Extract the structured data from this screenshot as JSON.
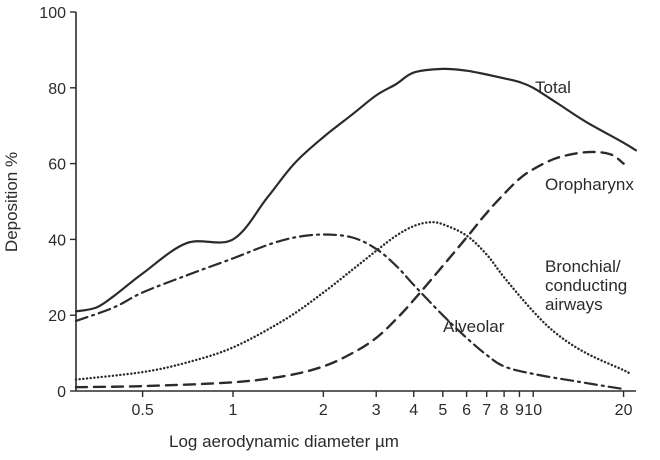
{
  "chart_data": {
    "type": "line",
    "title": "",
    "xlabel": "Log aerodynamic diameter µm",
    "ylabel": "Deposition %",
    "x_scale": "log",
    "xlim": [
      0.3,
      22
    ],
    "ylim": [
      0,
      100
    ],
    "grid": false,
    "x_ticks": [
      0.5,
      1,
      2,
      3,
      4,
      5,
      6,
      7,
      8,
      9,
      10,
      20
    ],
    "x_tick_labels": [
      "0.5",
      "1",
      "2",
      "3",
      "4",
      "5",
      "6",
      "7",
      "8",
      "9",
      "10",
      "20"
    ],
    "y_ticks": [
      0,
      20,
      40,
      60,
      80,
      100
    ],
    "y_tick_labels": [
      "0",
      "20",
      "40",
      "60",
      "80",
      "100"
    ],
    "series": [
      {
        "name": "Total",
        "style": "solid",
        "points": [
          [
            0.3,
            21
          ],
          [
            0.35,
            22
          ],
          [
            0.4,
            25
          ],
          [
            0.5,
            31
          ],
          [
            0.7,
            39
          ],
          [
            1,
            40
          ],
          [
            1.3,
            51
          ],
          [
            1.6,
            60
          ],
          [
            2,
            67
          ],
          [
            2.5,
            73
          ],
          [
            3,
            78
          ],
          [
            3.5,
            81
          ],
          [
            4,
            84
          ],
          [
            5,
            85
          ],
          [
            6,
            84.5
          ],
          [
            7,
            83.5
          ],
          [
            8,
            82.5
          ],
          [
            9,
            81.5
          ],
          [
            10,
            80
          ],
          [
            12,
            76
          ],
          [
            15,
            71
          ],
          [
            20,
            65.5
          ],
          [
            22,
            63.5
          ]
        ]
      },
      {
        "name": "Oropharynx",
        "style": "dashed",
        "points": [
          [
            0.3,
            1
          ],
          [
            0.5,
            1.3
          ],
          [
            1,
            2.3
          ],
          [
            1.5,
            4
          ],
          [
            2,
            6.5
          ],
          [
            2.5,
            10
          ],
          [
            3,
            14
          ],
          [
            3.5,
            19
          ],
          [
            4,
            24
          ],
          [
            5,
            33
          ],
          [
            6,
            40.5
          ],
          [
            7,
            47
          ],
          [
            8,
            52
          ],
          [
            9,
            56
          ],
          [
            10,
            58.5
          ],
          [
            12,
            61.5
          ],
          [
            15,
            63
          ],
          [
            18,
            62.5
          ],
          [
            20,
            60
          ]
        ]
      },
      {
        "name": "Bronchial/\nconducting\nairways",
        "style": "dotted",
        "points": [
          [
            0.3,
            3
          ],
          [
            0.5,
            5
          ],
          [
            0.7,
            7.5
          ],
          [
            1,
            11.5
          ],
          [
            1.5,
            19
          ],
          [
            2,
            26
          ],
          [
            2.5,
            32
          ],
          [
            3,
            37
          ],
          [
            3.5,
            41
          ],
          [
            4,
            43.5
          ],
          [
            4.5,
            44.5
          ],
          [
            5,
            44
          ],
          [
            6,
            41
          ],
          [
            7,
            36
          ],
          [
            8,
            30
          ],
          [
            10,
            21
          ],
          [
            12,
            15
          ],
          [
            15,
            10
          ],
          [
            20,
            5.5
          ],
          [
            21,
            4.5
          ]
        ]
      },
      {
        "name": "Alveolar",
        "style": "dash-dot",
        "points": [
          [
            0.3,
            18.5
          ],
          [
            0.4,
            22
          ],
          [
            0.5,
            26
          ],
          [
            0.7,
            30.5
          ],
          [
            1,
            35
          ],
          [
            1.3,
            38.5
          ],
          [
            1.6,
            40.5
          ],
          [
            2,
            41.3
          ],
          [
            2.5,
            40.5
          ],
          [
            3,
            37.5
          ],
          [
            3.5,
            33
          ],
          [
            4,
            28
          ],
          [
            5,
            20
          ],
          [
            6,
            14
          ],
          [
            7,
            9.5
          ],
          [
            8,
            6.5
          ],
          [
            10,
            4.5
          ],
          [
            14,
            2.5
          ],
          [
            20,
            0.5
          ]
        ]
      }
    ],
    "annotations": [
      {
        "text": "Total",
        "series": "Total"
      },
      {
        "text": "Oropharynx",
        "series": "Oropharynx"
      },
      {
        "text": "Bronchial/\nconducting\nairways",
        "series": "Bronchial/\nconducting\nairways"
      },
      {
        "text": "Alveolar",
        "series": "Alveolar"
      }
    ]
  }
}
